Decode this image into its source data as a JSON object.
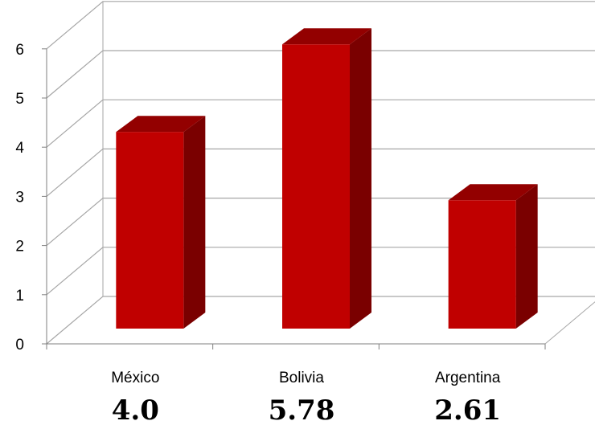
{
  "chart_data": {
    "type": "bar",
    "style": "3d-column",
    "categories": [
      "México",
      "Bolivia",
      "Argentina"
    ],
    "values": [
      4.0,
      5.78,
      2.61
    ],
    "value_labels": [
      "4.0",
      "5.78",
      "2.61"
    ],
    "y_ticks": [
      "0",
      "1",
      "2",
      "3",
      "4",
      "5",
      "6"
    ],
    "ylim": [
      0,
      6
    ],
    "grid": true,
    "legend": "none",
    "colors": {
      "bar_front": "#c00000",
      "bar_side": "#7a0000",
      "bar_top": "#930000",
      "grid": "#a6a6a6"
    }
  }
}
